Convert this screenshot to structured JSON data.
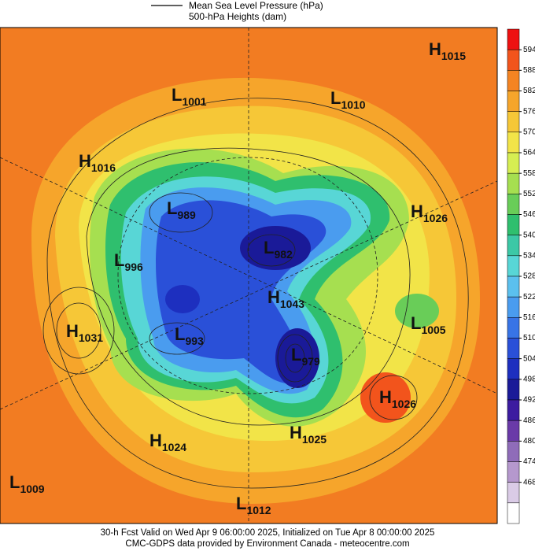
{
  "header": {
    "line1": "Mean Sea Level Pressure (hPa)",
    "line2": "500-hPa Heights (dam)"
  },
  "colorbar": {
    "ticks": [
      594,
      588,
      582,
      576,
      570,
      564,
      558,
      552,
      546,
      540,
      534,
      528,
      522,
      516,
      510,
      504,
      498,
      492,
      486,
      480,
      474,
      468
    ],
    "colors": [
      "#ee1111",
      "#f2541c",
      "#f48422",
      "#f6a52b",
      "#f6c737",
      "#f2e448",
      "#d6ee52",
      "#a6df50",
      "#69cd58",
      "#2fbf6e",
      "#3cc8a6",
      "#58d6d6",
      "#5bc0ee",
      "#4a9cef",
      "#3874e6",
      "#2a50d8",
      "#1d2fbf",
      "#1a1a98",
      "#3c1ca0",
      "#6a3aa8",
      "#8f6cb9",
      "#b598cd",
      "#dacbe6",
      "#ffffff"
    ]
  },
  "centers": [
    {
      "type": "H",
      "value": 1015
    },
    {
      "type": "L",
      "value": 1001
    },
    {
      "type": "L",
      "value": 1010
    },
    {
      "type": "H",
      "value": 1016
    },
    {
      "type": "L",
      "value": 989
    },
    {
      "type": "L",
      "value": 982
    },
    {
      "type": "H",
      "value": 1026
    },
    {
      "type": "L",
      "value": 996
    },
    {
      "type": "H",
      "value": 1043
    },
    {
      "type": "H",
      "value": 1031
    },
    {
      "type": "L",
      "value": 993
    },
    {
      "type": "L",
      "value": 1005
    },
    {
      "type": "L",
      "value": 979
    },
    {
      "type": "H",
      "value": 1026
    },
    {
      "type": "H",
      "value": 1025
    },
    {
      "type": "H",
      "value": 1024
    },
    {
      "type": "L",
      "value": 1009
    },
    {
      "type": "L",
      "value": 1012
    }
  ],
  "footer": {
    "line1": "30-h Fcst Valid on Wed Apr  9 06:00:00 2025, Initialized on Tue Apr  8 00:00:00 2025",
    "line2": "CMC-GDPS data provided by Environment Canada - meteocentre.com"
  }
}
